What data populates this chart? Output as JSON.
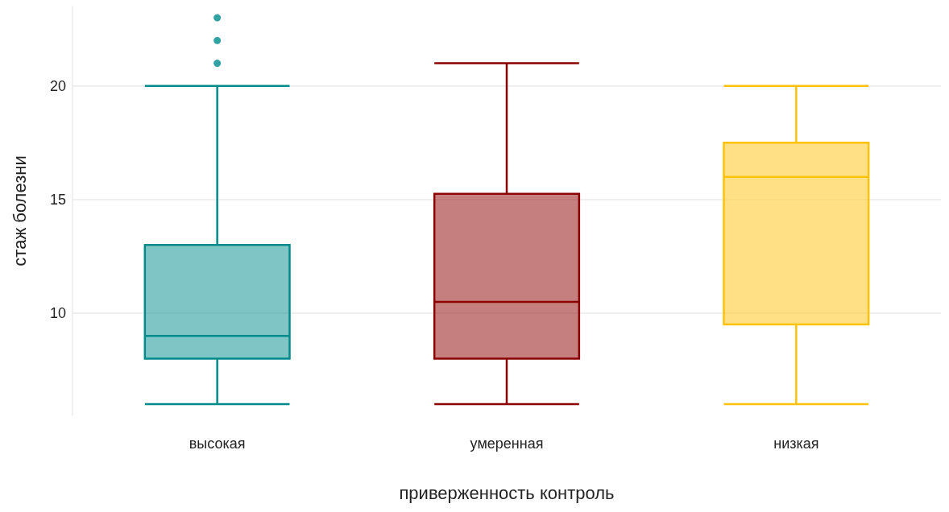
{
  "chart_data": {
    "type": "box",
    "xlabel": "приверженность контроль",
    "ylabel": "стаж болезни",
    "categories": [
      "высокая",
      "умеренная",
      "низкая"
    ],
    "colors": [
      "#008b8b",
      "#8b0000",
      "#ffc20a"
    ],
    "boxes": [
      {
        "low": 6,
        "q1": 8,
        "median": 9,
        "q3": 13,
        "high": 20,
        "outliers": [
          21,
          22,
          23
        ]
      },
      {
        "low": 6,
        "q1": 8,
        "median": 10.5,
        "q3": 15.25,
        "high": 21
      },
      {
        "low": 6,
        "q1": 9.5,
        "median": 16,
        "q3": 17.5,
        "high": 20
      }
    ],
    "ylim": [
      5.5,
      23.5
    ],
    "yticks": [
      10,
      15,
      20
    ],
    "grid": "y"
  }
}
